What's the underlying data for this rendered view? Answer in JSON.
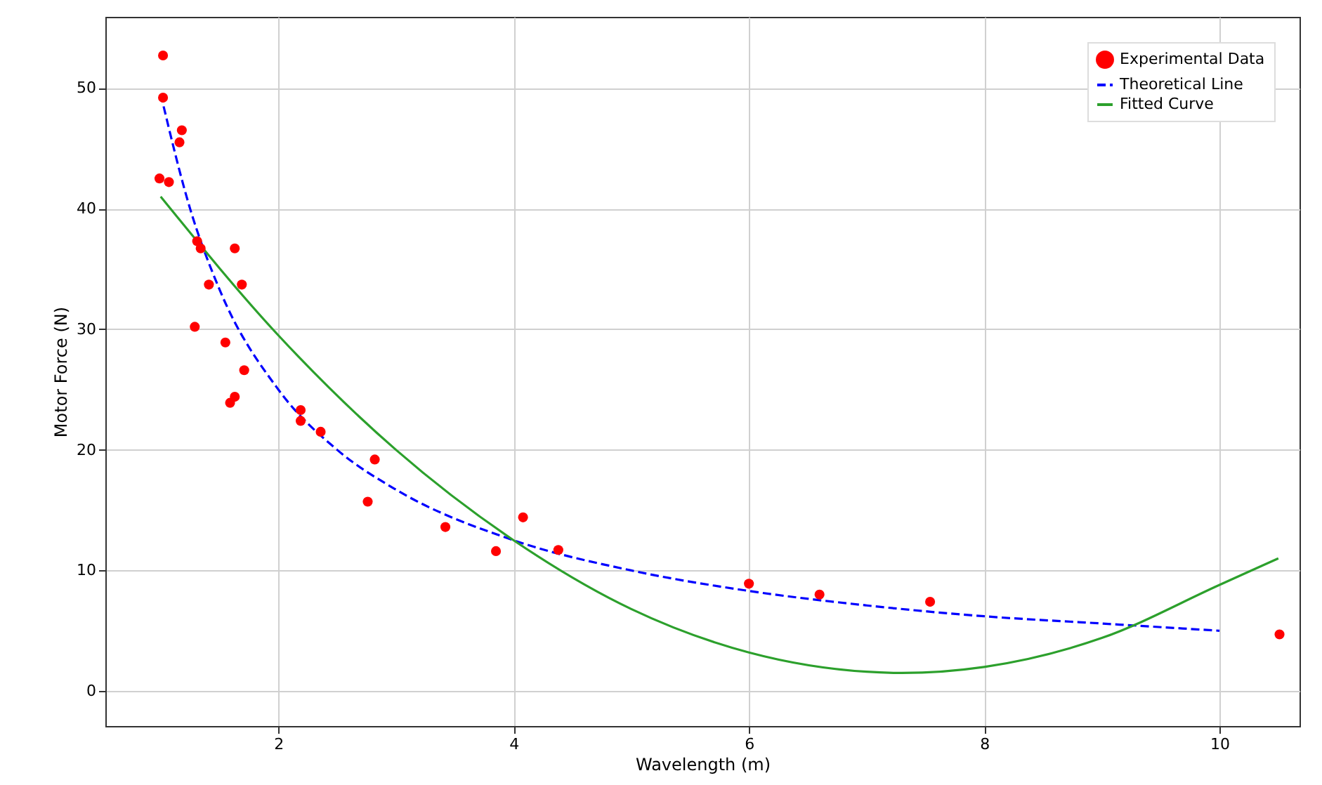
{
  "chart_data": {
    "type": "scatter",
    "xlabel": "Wavelength (m)",
    "ylabel": "Motor Force (N)",
    "xlim": [
      0.53,
      10.68
    ],
    "ylim": [
      -2.9,
      55.9
    ],
    "xticks": [
      2,
      4,
      6,
      8,
      10
    ],
    "yticks": [
      0,
      10,
      20,
      30,
      40,
      50
    ],
    "grid": true,
    "legend": "top right",
    "series": [
      {
        "name": "Experimental Data",
        "marker": "circle",
        "color": "#ff0000",
        "x": [
          1.02,
          1.02,
          1.18,
          1.16,
          0.99,
          1.07,
          1.31,
          1.34,
          1.63,
          1.41,
          1.69,
          1.29,
          1.55,
          1.71,
          1.63,
          1.59,
          2.19,
          2.19,
          2.36,
          2.82,
          2.76,
          3.42,
          3.85,
          4.08,
          4.38,
          6.0,
          6.6,
          7.54,
          10.51
        ],
        "values": [
          52.7,
          49.2,
          46.5,
          45.5,
          42.5,
          42.2,
          37.3,
          36.7,
          36.7,
          33.7,
          33.7,
          30.2,
          28.9,
          26.6,
          24.4,
          23.9,
          23.3,
          22.4,
          21.5,
          19.2,
          15.7,
          13.6,
          11.6,
          14.4,
          11.7,
          8.9,
          8.0,
          7.4,
          4.7
        ]
      },
      {
        "name": "Theoretical Line",
        "type": "line",
        "line_style": "dashed",
        "color": "#0000ff",
        "x": [
          1,
          1.25,
          1.5,
          2,
          2.5,
          3,
          4,
          5,
          6,
          7,
          8,
          9,
          10
        ],
        "values": [
          49.5,
          40,
          33.3,
          25,
          20,
          16.7,
          12.5,
          10,
          8.3,
          7.1,
          6.2,
          5.6,
          5.0
        ]
      },
      {
        "name": "Fitted Curve",
        "type": "line",
        "line_style": "solid",
        "color": "#2ca02c",
        "x": [
          1,
          2,
          3,
          4,
          5,
          6,
          7,
          7.3,
          8,
          9,
          10,
          10.5
        ],
        "values": [
          41,
          29.5,
          20,
          12.5,
          6.8,
          3.2,
          1.6,
          1.5,
          2,
          4.4,
          8.8,
          11
        ]
      }
    ]
  }
}
